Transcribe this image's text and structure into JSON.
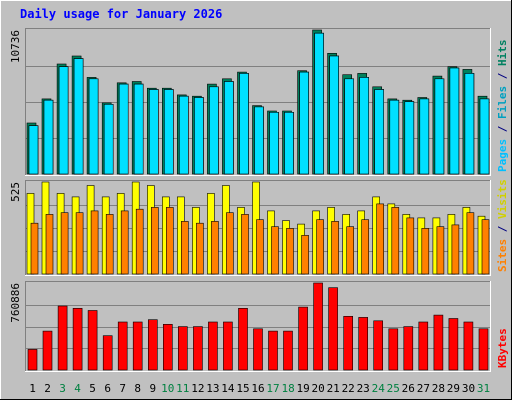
{
  "chart_data": {
    "type": "bar",
    "title": "Daily usage for January 2026",
    "categories": [
      "1",
      "2",
      "3",
      "4",
      "5",
      "6",
      "7",
      "8",
      "9",
      "10",
      "11",
      "12",
      "13",
      "14",
      "15",
      "16",
      "17",
      "18",
      "19",
      "20",
      "21",
      "22",
      "23",
      "24",
      "25",
      "26",
      "27",
      "28",
      "29",
      "30",
      "31"
    ],
    "weekend_days": [
      "3",
      "4",
      "10",
      "11",
      "17",
      "18",
      "24",
      "25",
      "31"
    ],
    "panels": [
      {
        "id": "top",
        "max_label": "10736",
        "ylim": [
          0,
          10736
        ],
        "side_labels": [
          {
            "text": "Pages",
            "color": "#00c0ff"
          },
          {
            "text": " / ",
            "color": "#000080"
          },
          {
            "text": "Files",
            "color": "#00a0c0"
          },
          {
            "text": " / ",
            "color": "#000080"
          },
          {
            "text": "Hits",
            "color": "#008060"
          }
        ],
        "series": [
          {
            "name": "Hits",
            "color": "#00805c",
            "values": [
              3800,
              5600,
              8200,
              8800,
              7200,
              5300,
              6800,
              6900,
              6400,
              6400,
              5900,
              5800,
              6700,
              7100,
              7600,
              5100,
              4700,
              4700,
              7700,
              10736,
              9000,
              7400,
              7500,
              6500,
              5600,
              5500,
              5700,
              7300,
              8000,
              7800,
              5800
            ]
          },
          {
            "name": "Files",
            "color": "#00c0d8",
            "values": [
              3600,
              5500,
              8000,
              8600,
              7100,
              5200,
              6700,
              6700,
              6300,
              6300,
              5800,
              5700,
              6500,
              6900,
              7500,
              5000,
              4600,
              4600,
              7600,
              10500,
              8800,
              7100,
              7200,
              6300,
              5500,
              5400,
              5600,
              7100,
              7900,
              7500,
              5600
            ]
          },
          {
            "name": "Pages",
            "color": "#00e0ff",
            "values": [
              3600,
              5500,
              8000,
              8600,
              7100,
              5200,
              6700,
              6700,
              6300,
              6300,
              5800,
              5700,
              6500,
              6900,
              7500,
              5000,
              4600,
              4600,
              7600,
              10500,
              8800,
              7100,
              7200,
              6300,
              5500,
              5400,
              5600,
              7100,
              7900,
              7500,
              5600
            ]
          }
        ]
      },
      {
        "id": "mid",
        "max_label": "525",
        "ylim": [
          0,
          525
        ],
        "side_labels": [
          {
            "text": "Sites",
            "color": "#ff8000"
          },
          {
            "text": " / ",
            "color": "#000080"
          },
          {
            "text": "Visits",
            "color": "#d0d000"
          }
        ],
        "series": [
          {
            "name": "Visits",
            "color": "#ffff00",
            "values": [
              460,
              525,
              460,
              440,
              505,
              440,
              460,
              525,
              505,
              440,
              440,
              380,
              460,
              505,
              380,
              525,
              360,
              305,
              285,
              360,
              380,
              340,
              360,
              440,
              400,
              340,
              320,
              320,
              340,
              380,
              330
            ]
          },
          {
            "name": "Sites",
            "color": "#ff8000",
            "values": [
              290,
              340,
              350,
              350,
              360,
              340,
              360,
              370,
              380,
              380,
              300,
              290,
              300,
              350,
              340,
              310,
              270,
              260,
              220,
              310,
              300,
              270,
              310,
              400,
              380,
              320,
              260,
              270,
              280,
              350,
              310
            ]
          }
        ]
      },
      {
        "id": "bot",
        "max_label": "760886",
        "ylim": [
          0,
          760886
        ],
        "side_labels": [
          {
            "text": "KBytes",
            "color": "#ff0000"
          }
        ],
        "series": [
          {
            "name": "KBytes",
            "color": "#ff0000",
            "values": [
              180000,
              340000,
              560000,
              540000,
              520000,
              300000,
              420000,
              420000,
              440000,
              400000,
              380000,
              380000,
              420000,
              420000,
              540000,
              360000,
              340000,
              340000,
              550000,
              760886,
              720000,
              470000,
              460000,
              430000,
              360000,
              380000,
              420000,
              480000,
              450000,
              420000,
              360000
            ]
          }
        ]
      }
    ]
  }
}
